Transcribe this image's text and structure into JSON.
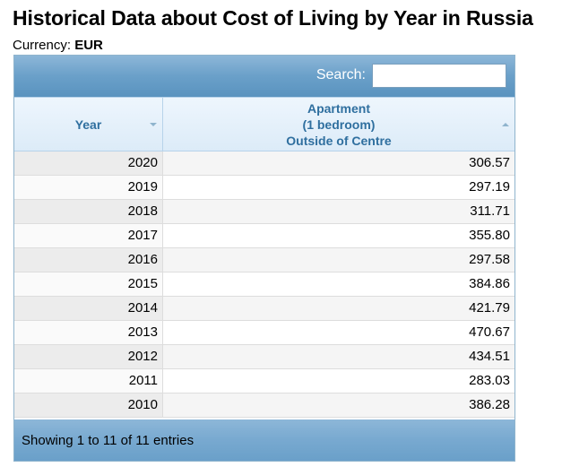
{
  "page": {
    "title": "Historical Data about Cost of Living by Year in Russia",
    "currency_label": "Currency:",
    "currency_value": "EUR"
  },
  "search": {
    "label": "Search:",
    "value": ""
  },
  "table": {
    "columns": [
      {
        "label": "Year",
        "sort": "down-arrow"
      },
      {
        "label_lines": [
          "Apartment",
          "(1 bedroom)",
          "Outside of Centre"
        ],
        "sort": "up-arrow"
      }
    ],
    "rows": [
      {
        "year": "2020",
        "value": "306.57"
      },
      {
        "year": "2019",
        "value": "297.19"
      },
      {
        "year": "2018",
        "value": "311.71"
      },
      {
        "year": "2017",
        "value": "355.80"
      },
      {
        "year": "2016",
        "value": "297.58"
      },
      {
        "year": "2015",
        "value": "384.86"
      },
      {
        "year": "2014",
        "value": "421.79"
      },
      {
        "year": "2013",
        "value": "470.67"
      },
      {
        "year": "2012",
        "value": "434.51"
      },
      {
        "year": "2011",
        "value": "283.03"
      },
      {
        "year": "2010",
        "value": "386.28"
      }
    ],
    "footer": "Showing 1 to 11 of 11 entries"
  }
}
